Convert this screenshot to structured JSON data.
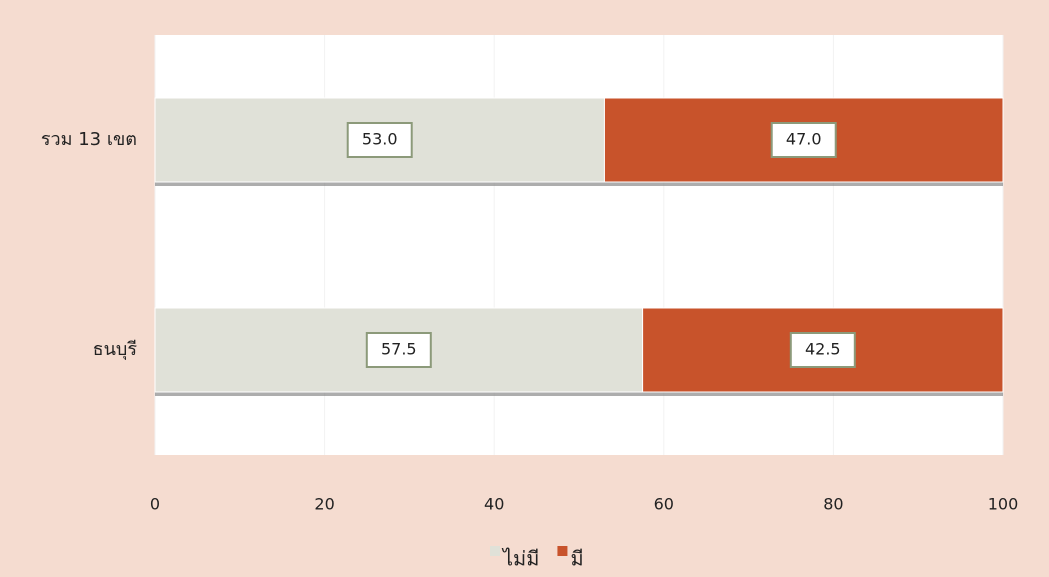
{
  "chart_data": {
    "type": "stacked_barh",
    "categories": [
      "รวม 13 เขต",
      "ธนบุรี"
    ],
    "series": [
      {
        "name": "ไม่มี",
        "color": "#e0e1d8",
        "values": [
          53.0,
          57.5
        ],
        "value_labels": [
          "53.0",
          "57.5"
        ]
      },
      {
        "name": "มี",
        "color": "#c8532b",
        "values": [
          47.0,
          42.5
        ],
        "value_labels": [
          "47.0",
          "42.5"
        ]
      }
    ],
    "xlim": [
      0,
      100
    ],
    "xticks": [
      0,
      20,
      40,
      60,
      80,
      100
    ],
    "legend": "bottom"
  }
}
